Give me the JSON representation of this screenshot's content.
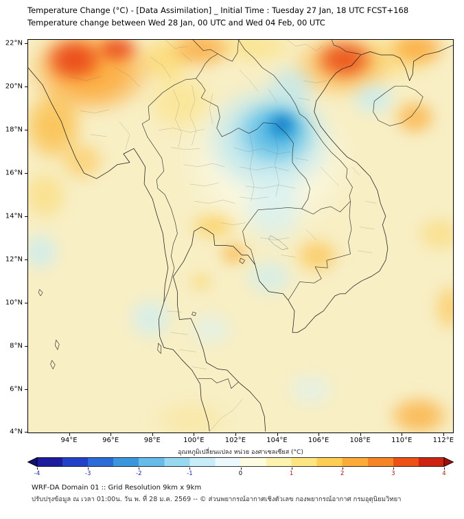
{
  "header": {
    "title": "Temperature Change (°C) - [Data Assimilation] _ Initial Time : Tuesday 27 Jan, 18 UTC FCST+168",
    "subtitle": "Temperature change between Wed 28 Jan, 00 UTC and Wed 04 Feb, 00 UTC"
  },
  "footer": {
    "line1": "WRF-DA Domain 01 :: Grid Resolution 9km x 9km",
    "line2": "ปรับปรุงข้อมูล ณ เวลา 01:00น. วัน พ. ที่ 28 ม.ค. 2569 -- © ส่วนพยากรณ์อากาศเชิงตัวเลข กองพยากรณ์อากาศ กรมอุตุนิยมวิทยา"
  },
  "chart_data": {
    "type": "heatmap",
    "title": "Temperature Change (°C) - [Data Assimilation] _ Initial Time : Tuesday 27 Jan, 18 UTC FCST+168",
    "subtitle": "Temperature change between Wed 28 Jan, 00 UTC and Wed 04 Feb, 00 UTC",
    "region": "Thailand / Indochina WRF-DA Domain 01",
    "x_axis": {
      "ticks": [
        "94°E",
        "96°E",
        "98°E",
        "100°E",
        "102°E",
        "104°E",
        "106°E",
        "108°E",
        "110°E",
        "112°E"
      ],
      "values": [
        94,
        96,
        98,
        100,
        102,
        104,
        106,
        108,
        110,
        112
      ],
      "range": [
        92.0,
        112.5
      ]
    },
    "y_axis": {
      "ticks": [
        "22°N",
        "20°N",
        "18°N",
        "16°N",
        "14°N",
        "12°N",
        "10°N",
        "8°N",
        "6°N",
        "4°N"
      ],
      "values": [
        22,
        20,
        18,
        16,
        14,
        12,
        10,
        8,
        6,
        4
      ],
      "range": [
        3.95,
        22.2
      ]
    },
    "colorbar": {
      "label": "อุณหภูมิเปลี่ยนแปลง หน่วย องศาเซลเซียส (°C)",
      "unit": "°C",
      "range": [
        -4,
        4
      ],
      "ticks": [
        -4,
        -3,
        -2,
        -1,
        0,
        1,
        2,
        3,
        4
      ],
      "band_colors": [
        "#1c1c9c",
        "#2340c8",
        "#2a6bd8",
        "#3c96dc",
        "#66bce8",
        "#98d8f0",
        "#c8ecf8",
        "#ecf9fc",
        "#fdfbe0",
        "#fdf2b0",
        "#fde582",
        "#fdcd54",
        "#fcab38",
        "#f68324",
        "#ec5014",
        "#cc2410"
      ],
      "under_color": "#10126e",
      "over_color": "#a00d0d",
      "tick_color_negative": "#2020b0",
      "tick_color_positive": "#b01010",
      "tick_color_zero": "#000000"
    },
    "base_color": "#f8efc5",
    "base_value": 0.5,
    "features": [
      {
        "name": "w-gold",
        "lon": 92.8,
        "lat": 15.0,
        "rx": 1.2,
        "ry": 1.3,
        "color": "#fcd45e",
        "alpha": 0.55,
        "value": 1
      },
      {
        "name": "s-gold",
        "lon": 99.8,
        "lat": 4.6,
        "rx": 2.0,
        "ry": 1.0,
        "color": "#fbe18c",
        "alpha": 0.5,
        "value": 1
      },
      {
        "name": "nw-yellow-gold",
        "lon": 99.3,
        "lat": 19.3,
        "rx": 1.8,
        "ry": 1.5,
        "color": "#fce07a",
        "alpha": 0.6,
        "value": 1
      },
      {
        "name": "n-gold-bridge",
        "lon": 98.6,
        "lat": 21.3,
        "rx": 1.4,
        "ry": 1.2,
        "color": "#fdd45c",
        "alpha": 0.7,
        "value": 1.5
      },
      {
        "name": "top-gold-band",
        "lon": 102.8,
        "lat": 21.9,
        "rx": 2.2,
        "ry": 0.9,
        "color": "#fcdc6a",
        "alpha": 0.55,
        "value": 1
      },
      {
        "name": "ne-gold-wash",
        "lon": 109.5,
        "lat": 21.4,
        "rx": 2.4,
        "ry": 1.2,
        "color": "#fcd662",
        "alpha": 0.5,
        "value": 1
      },
      {
        "name": "e-mid-gold",
        "lon": 111.8,
        "lat": 13.2,
        "rx": 1.2,
        "ry": 0.9,
        "color": "#fcd25e",
        "alpha": 0.55,
        "value": 1
      },
      {
        "name": "right-edge-orange",
        "lon": 112.3,
        "lat": 9.8,
        "rx": 0.9,
        "ry": 1.2,
        "color": "#fcc14a",
        "alpha": 0.65,
        "value": 1.5
      },
      {
        "name": "se-orange",
        "lon": 110.8,
        "lat": 4.8,
        "rx": 1.6,
        "ry": 1.0,
        "color": "#fbaa35",
        "alpha": 0.8,
        "value": 2
      },
      {
        "name": "white-halo",
        "lon": 103.5,
        "lat": 16.6,
        "rx": 4.3,
        "ry": 3.6,
        "color": "#fbfbec",
        "alpha": 0.9,
        "value": 0
      },
      {
        "name": "nw-warm-mass",
        "lon": 95.0,
        "lat": 20.8,
        "rx": 3.2,
        "ry": 2.2,
        "color": "#fca32e",
        "alpha": 0.95,
        "value": 2.5
      },
      {
        "name": "nw-orange-south",
        "lon": 93.2,
        "lat": 18.2,
        "rx": 1.6,
        "ry": 1.8,
        "color": "#fbb32f",
        "alpha": 0.75,
        "value": 2
      },
      {
        "name": "w-orange-streak",
        "lon": 94.6,
        "lat": 16.6,
        "rx": 1.2,
        "ry": 1.0,
        "color": "#fcc34e",
        "alpha": 0.65,
        "value": 1.5
      },
      {
        "name": "nw-red-core-1",
        "lon": 94.2,
        "lat": 21.3,
        "rx": 1.5,
        "ry": 1.1,
        "color": "#e73a12",
        "alpha": 0.9,
        "value": 3.5
      },
      {
        "name": "nw-red-core-2",
        "lon": 96.3,
        "lat": 21.8,
        "rx": 1.1,
        "ry": 0.7,
        "color": "#e73a12",
        "alpha": 0.85,
        "value": 3.5
      },
      {
        "name": "n-orange",
        "lon": 100.3,
        "lat": 21.8,
        "rx": 1.6,
        "ry": 1.0,
        "color": "#fb9e28",
        "alpha": 0.75,
        "value": 2
      },
      {
        "name": "ne-orange-halo",
        "lon": 107.1,
        "lat": 21.0,
        "rx": 2.6,
        "ry": 1.6,
        "color": "#fcaa32",
        "alpha": 0.7,
        "value": 2
      },
      {
        "name": "ne-red-blob",
        "lon": 107.2,
        "lat": 21.3,
        "rx": 1.5,
        "ry": 1.0,
        "color": "#e8420f",
        "alpha": 0.88,
        "value": 3.5
      },
      {
        "name": "hainan-orange",
        "lon": 110.7,
        "lat": 21.8,
        "rx": 1.5,
        "ry": 0.9,
        "color": "#fba02a",
        "alpha": 0.8,
        "value": 2.5
      },
      {
        "name": "e-orange-blob",
        "lon": 110.6,
        "lat": 18.6,
        "rx": 1.1,
        "ry": 0.9,
        "color": "#fbaa35",
        "alpha": 0.78,
        "value": 2
      },
      {
        "name": "central-orange-1",
        "lon": 100.9,
        "lat": 13.6,
        "rx": 1.2,
        "ry": 0.7,
        "color": "#fccb52",
        "alpha": 0.75,
        "value": 1.5
      },
      {
        "name": "central-orange-2",
        "lon": 101.9,
        "lat": 12.3,
        "rx": 0.8,
        "ry": 0.6,
        "color": "#fbae38",
        "alpha": 0.75,
        "value": 2
      },
      {
        "name": "gulf-coast-orange",
        "lon": 100.3,
        "lat": 11.0,
        "rx": 0.6,
        "ry": 0.5,
        "color": "#fccf55",
        "alpha": 0.6,
        "value": 1.5
      },
      {
        "name": "mekong-orange",
        "lon": 105.9,
        "lat": 12.2,
        "rx": 1.2,
        "ry": 0.9,
        "color": "#fcc14a",
        "alpha": 0.75,
        "value": 1.5
      },
      {
        "name": "blue-mass",
        "lon": 103.6,
        "lat": 17.6,
        "rx": 3.3,
        "ry": 2.7,
        "color": "#a8dff0",
        "alpha": 0.9,
        "value": -1
      },
      {
        "name": "blue-north-extension",
        "lon": 104.6,
        "lat": 20.0,
        "rx": 1.4,
        "ry": 1.2,
        "color": "#b8e5f2",
        "alpha": 0.7,
        "value": -1
      },
      {
        "name": "gulf-tonkin-cyan",
        "lon": 108.6,
        "lat": 19.5,
        "rx": 1.2,
        "ry": 0.9,
        "color": "#c4ebf4",
        "alpha": 0.8,
        "value": -1
      },
      {
        "name": "blue-south-tongue",
        "lon": 103.8,
        "lat": 14.5,
        "rx": 1.7,
        "ry": 2.0,
        "color": "#cfeff6",
        "alpha": 0.7,
        "value": -0.5
      },
      {
        "name": "cyan-se",
        "lon": 103.6,
        "lat": 11.2,
        "rx": 1.3,
        "ry": 1.0,
        "color": "#c8edf5",
        "alpha": 0.7,
        "value": -0.5
      },
      {
        "name": "west-cyan-patch",
        "lon": 92.6,
        "lat": 12.4,
        "rx": 1.0,
        "ry": 1.0,
        "color": "#c6ecf5",
        "alpha": 0.8,
        "value": -0.5
      },
      {
        "name": "andaman-cyan",
        "lon": 97.9,
        "lat": 9.3,
        "rx": 1.2,
        "ry": 1.1,
        "color": "#cbeef6",
        "alpha": 0.75,
        "value": -0.5
      },
      {
        "name": "gulf-cyan",
        "lon": 100.8,
        "lat": 8.8,
        "rx": 1.2,
        "ry": 0.9,
        "color": "#d8f2f8",
        "alpha": 0.6,
        "value": -0.5
      },
      {
        "name": "s-cyan-patch",
        "lon": 105.6,
        "lat": 6.0,
        "rx": 1.3,
        "ry": 0.9,
        "color": "#daf3f8",
        "alpha": 0.6,
        "value": -0.5
      },
      {
        "name": "blue-mid",
        "lon": 103.9,
        "lat": 17.9,
        "rx": 2.0,
        "ry": 1.6,
        "color": "#49b4e2",
        "alpha": 0.85,
        "value": -2
      },
      {
        "name": "blue-core",
        "lon": 104.2,
        "lat": 18.2,
        "rx": 0.95,
        "ry": 0.8,
        "color": "#1492d4",
        "alpha": 0.9,
        "value": -3
      },
      {
        "name": "blue-core-inner",
        "lon": 104.25,
        "lat": 18.35,
        "rx": 0.5,
        "ry": 0.42,
        "color": "#0b6cc0",
        "alpha": 0.9,
        "value": -3.5
      }
    ]
  }
}
